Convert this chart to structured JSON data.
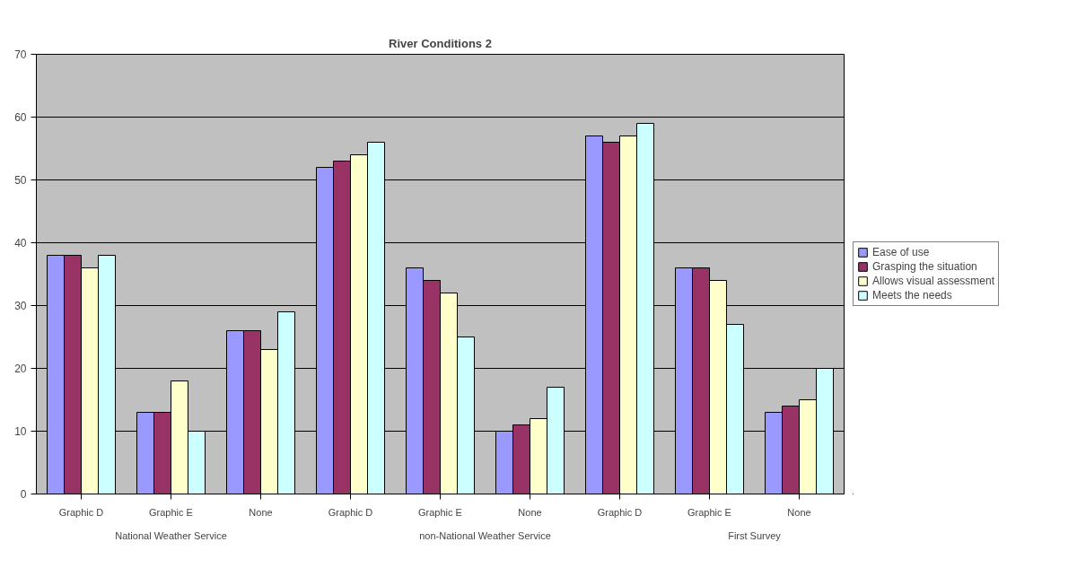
{
  "chart_data": {
    "type": "bar",
    "title": "River Conditions 2",
    "categories": [
      "Graphic D",
      "Graphic E",
      "None",
      "Graphic D",
      "Graphic E",
      "None",
      "Graphic D",
      "Graphic E",
      "None"
    ],
    "series": [
      {
        "name": "Ease of use",
        "color": "#9999ff",
        "values": [
          38,
          13,
          26,
          52,
          36,
          10,
          57,
          36,
          13
        ]
      },
      {
        "name": "Grasping the situation",
        "color": "#993366",
        "values": [
          38,
          13,
          26,
          53,
          34,
          11,
          56,
          36,
          14
        ]
      },
      {
        "name": "Allows visual assessment",
        "color": "#ffffcc",
        "values": [
          36,
          18,
          23,
          54,
          32,
          12,
          57,
          34,
          15
        ]
      },
      {
        "name": "Meets the needs",
        "color": "#ccffff",
        "values": [
          38,
          10,
          29,
          56,
          25,
          17,
          59,
          27,
          20
        ]
      }
    ],
    "annotations": [
      "National Weather Service",
      "non-National Weather Service",
      "First Survey"
    ],
    "ylim": [
      0,
      70
    ],
    "yticks": [
      0,
      10,
      20,
      30,
      40,
      50,
      60,
      70
    ],
    "grid": "y",
    "legend": "right"
  }
}
